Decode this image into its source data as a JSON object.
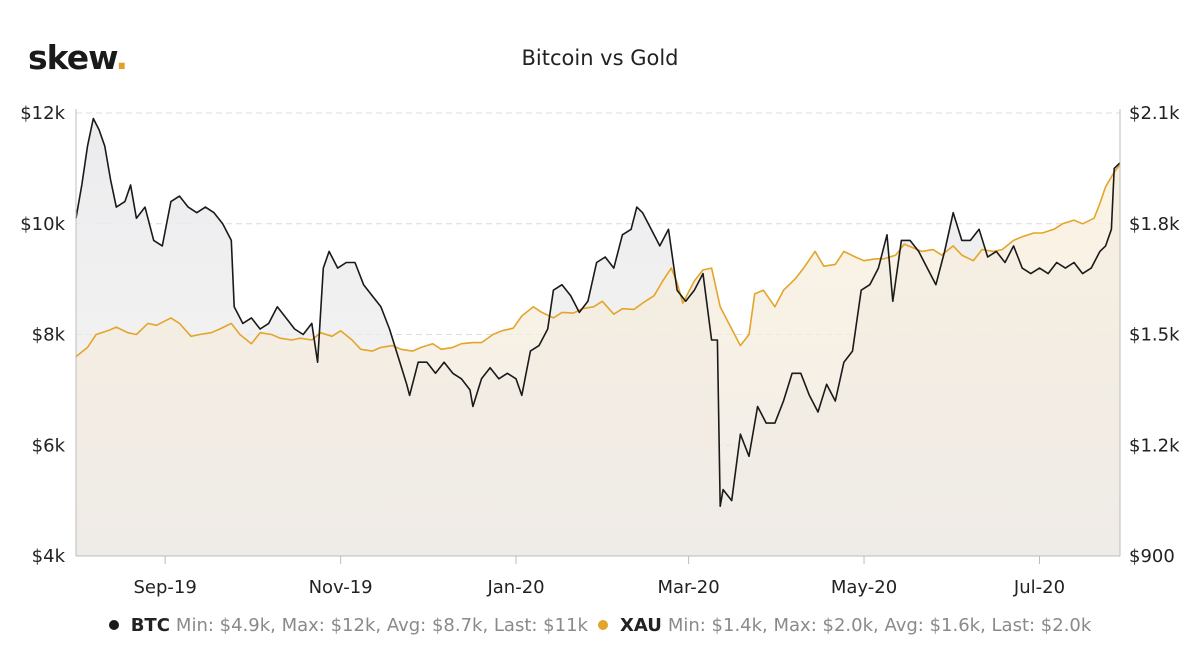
{
  "brand": {
    "name": "skew",
    "dot": "."
  },
  "colors": {
    "btc": "#1a1a1a",
    "xau": "#e3a52b",
    "grid": "#dcdcdc",
    "btcFill": "#e6e6e8",
    "xauFill": "#f6ead2"
  },
  "legend": {
    "btc": {
      "name": "BTC",
      "stats": "Min: $4.9k, Max: $12k, Avg: $8.7k, Last: $11k"
    },
    "xau": {
      "name": "XAU",
      "stats": "Min: $1.4k, Max: $2.0k, Avg: $1.6k, Last: $2.0k"
    }
  },
  "chart_data": {
    "type": "line",
    "title": "Bitcoin vs Gold",
    "x_ticks": [
      "Sep-19",
      "Nov-19",
      "Jan-20",
      "Mar-20",
      "May-20",
      "Jul-20"
    ],
    "x_tick_dates": [
      "2019-09-01",
      "2019-11-01",
      "2020-01-01",
      "2020-03-01",
      "2020-05-01",
      "2020-07-01"
    ],
    "x_range": [
      "2019-08-01",
      "2020-07-29"
    ],
    "y_left": {
      "range": [
        4000,
        12000
      ],
      "ticks": [
        4000,
        6000,
        8000,
        10000,
        12000
      ],
      "tick_labels": [
        "$4k",
        "$6k",
        "$8k",
        "$10k",
        "$12k"
      ]
    },
    "y_right": {
      "range": [
        900,
        2100
      ],
      "ticks": [
        900,
        1200,
        1500,
        1800,
        2100
      ],
      "tick_labels": [
        "$900",
        "$1.2k",
        "$1.5k",
        "$1.8k",
        "$2.1k"
      ]
    },
    "grid": true,
    "legend_position": "bottom-center",
    "series": [
      {
        "name": "BTC",
        "axis": "left",
        "points": [
          [
            "2019-08-01",
            10100
          ],
          [
            "2019-08-03",
            10700
          ],
          [
            "2019-08-05",
            11400
          ],
          [
            "2019-08-07",
            11900
          ],
          [
            "2019-08-09",
            11700
          ],
          [
            "2019-08-11",
            11400
          ],
          [
            "2019-08-13",
            10800
          ],
          [
            "2019-08-15",
            10300
          ],
          [
            "2019-08-18",
            10400
          ],
          [
            "2019-08-20",
            10700
          ],
          [
            "2019-08-22",
            10100
          ],
          [
            "2019-08-25",
            10300
          ],
          [
            "2019-08-28",
            9700
          ],
          [
            "2019-08-31",
            9600
          ],
          [
            "2019-09-03",
            10400
          ],
          [
            "2019-09-06",
            10500
          ],
          [
            "2019-09-09",
            10300
          ],
          [
            "2019-09-12",
            10200
          ],
          [
            "2019-09-15",
            10300
          ],
          [
            "2019-09-18",
            10200
          ],
          [
            "2019-09-21",
            10000
          ],
          [
            "2019-09-24",
            9700
          ],
          [
            "2019-09-25",
            8500
          ],
          [
            "2019-09-28",
            8200
          ],
          [
            "2019-10-01",
            8300
          ],
          [
            "2019-10-04",
            8100
          ],
          [
            "2019-10-07",
            8200
          ],
          [
            "2019-10-10",
            8500
          ],
          [
            "2019-10-13",
            8300
          ],
          [
            "2019-10-16",
            8100
          ],
          [
            "2019-10-19",
            8000
          ],
          [
            "2019-10-22",
            8200
          ],
          [
            "2019-10-24",
            7500
          ],
          [
            "2019-10-26",
            9200
          ],
          [
            "2019-10-28",
            9500
          ],
          [
            "2019-10-31",
            9200
          ],
          [
            "2019-11-03",
            9300
          ],
          [
            "2019-11-06",
            9300
          ],
          [
            "2019-11-09",
            8900
          ],
          [
            "2019-11-12",
            8700
          ],
          [
            "2019-11-15",
            8500
          ],
          [
            "2019-11-18",
            8100
          ],
          [
            "2019-11-21",
            7600
          ],
          [
            "2019-11-24",
            7100
          ],
          [
            "2019-11-25",
            6900
          ],
          [
            "2019-11-28",
            7500
          ],
          [
            "2019-12-01",
            7500
          ],
          [
            "2019-12-04",
            7300
          ],
          [
            "2019-12-07",
            7500
          ],
          [
            "2019-12-10",
            7300
          ],
          [
            "2019-12-13",
            7200
          ],
          [
            "2019-12-16",
            7000
          ],
          [
            "2019-12-17",
            6700
          ],
          [
            "2019-12-20",
            7200
          ],
          [
            "2019-12-23",
            7400
          ],
          [
            "2019-12-26",
            7200
          ],
          [
            "2019-12-29",
            7300
          ],
          [
            "2020-01-01",
            7200
          ],
          [
            "2020-01-03",
            6900
          ],
          [
            "2020-01-06",
            7700
          ],
          [
            "2020-01-09",
            7800
          ],
          [
            "2020-01-12",
            8100
          ],
          [
            "2020-01-14",
            8800
          ],
          [
            "2020-01-17",
            8900
          ],
          [
            "2020-01-20",
            8700
          ],
          [
            "2020-01-23",
            8400
          ],
          [
            "2020-01-26",
            8600
          ],
          [
            "2020-01-29",
            9300
          ],
          [
            "2020-02-01",
            9400
          ],
          [
            "2020-02-04",
            9200
          ],
          [
            "2020-02-07",
            9800
          ],
          [
            "2020-02-10",
            9900
          ],
          [
            "2020-02-12",
            10300
          ],
          [
            "2020-02-14",
            10200
          ],
          [
            "2020-02-17",
            9900
          ],
          [
            "2020-02-20",
            9600
          ],
          [
            "2020-02-23",
            9900
          ],
          [
            "2020-02-26",
            8800
          ],
          [
            "2020-02-29",
            8600
          ],
          [
            "2020-03-03",
            8800
          ],
          [
            "2020-03-06",
            9100
          ],
          [
            "2020-03-09",
            7900
          ],
          [
            "2020-03-11",
            7900
          ],
          [
            "2020-03-12",
            4900
          ],
          [
            "2020-03-13",
            5200
          ],
          [
            "2020-03-16",
            5000
          ],
          [
            "2020-03-19",
            6200
          ],
          [
            "2020-03-22",
            5800
          ],
          [
            "2020-03-25",
            6700
          ],
          [
            "2020-03-28",
            6400
          ],
          [
            "2020-03-31",
            6400
          ],
          [
            "2020-04-03",
            6800
          ],
          [
            "2020-04-06",
            7300
          ],
          [
            "2020-04-09",
            7300
          ],
          [
            "2020-04-12",
            6900
          ],
          [
            "2020-04-15",
            6600
          ],
          [
            "2020-04-18",
            7100
          ],
          [
            "2020-04-21",
            6800
          ],
          [
            "2020-04-24",
            7500
          ],
          [
            "2020-04-27",
            7700
          ],
          [
            "2020-04-30",
            8800
          ],
          [
            "2020-05-03",
            8900
          ],
          [
            "2020-05-06",
            9200
          ],
          [
            "2020-05-09",
            9800
          ],
          [
            "2020-05-11",
            8600
          ],
          [
            "2020-05-14",
            9700
          ],
          [
            "2020-05-17",
            9700
          ],
          [
            "2020-05-20",
            9500
          ],
          [
            "2020-05-23",
            9200
          ],
          [
            "2020-05-26",
            8900
          ],
          [
            "2020-05-29",
            9500
          ],
          [
            "2020-06-01",
            10200
          ],
          [
            "2020-06-04",
            9700
          ],
          [
            "2020-06-07",
            9700
          ],
          [
            "2020-06-10",
            9900
          ],
          [
            "2020-06-13",
            9400
          ],
          [
            "2020-06-16",
            9500
          ],
          [
            "2020-06-19",
            9300
          ],
          [
            "2020-06-22",
            9600
          ],
          [
            "2020-06-25",
            9200
          ],
          [
            "2020-06-28",
            9100
          ],
          [
            "2020-07-01",
            9200
          ],
          [
            "2020-07-04",
            9100
          ],
          [
            "2020-07-07",
            9300
          ],
          [
            "2020-07-10",
            9200
          ],
          [
            "2020-07-13",
            9300
          ],
          [
            "2020-07-16",
            9100
          ],
          [
            "2020-07-19",
            9200
          ],
          [
            "2020-07-22",
            9500
          ],
          [
            "2020-07-24",
            9600
          ],
          [
            "2020-07-26",
            9900
          ],
          [
            "2020-07-27",
            11000
          ],
          [
            "2020-07-29",
            11100
          ]
        ]
      },
      {
        "name": "XAU",
        "axis": "right",
        "points": [
          [
            "2019-08-01",
            1440
          ],
          [
            "2019-08-05",
            1465
          ],
          [
            "2019-08-08",
            1500
          ],
          [
            "2019-08-12",
            1510
          ],
          [
            "2019-08-15",
            1520
          ],
          [
            "2019-08-19",
            1505
          ],
          [
            "2019-08-22",
            1500
          ],
          [
            "2019-08-26",
            1530
          ],
          [
            "2019-08-29",
            1525
          ],
          [
            "2019-09-03",
            1545
          ],
          [
            "2019-09-06",
            1530
          ],
          [
            "2019-09-10",
            1495
          ],
          [
            "2019-09-13",
            1500
          ],
          [
            "2019-09-17",
            1505
          ],
          [
            "2019-09-20",
            1515
          ],
          [
            "2019-09-24",
            1530
          ],
          [
            "2019-09-27",
            1500
          ],
          [
            "2019-10-01",
            1475
          ],
          [
            "2019-10-04",
            1505
          ],
          [
            "2019-10-08",
            1500
          ],
          [
            "2019-10-11",
            1490
          ],
          [
            "2019-10-15",
            1485
          ],
          [
            "2019-10-18",
            1490
          ],
          [
            "2019-10-22",
            1485
          ],
          [
            "2019-10-25",
            1505
          ],
          [
            "2019-10-29",
            1495
          ],
          [
            "2019-11-01",
            1510
          ],
          [
            "2019-11-05",
            1485
          ],
          [
            "2019-11-08",
            1460
          ],
          [
            "2019-11-12",
            1455
          ],
          [
            "2019-11-15",
            1465
          ],
          [
            "2019-11-19",
            1470
          ],
          [
            "2019-11-22",
            1460
          ],
          [
            "2019-11-26",
            1455
          ],
          [
            "2019-11-29",
            1465
          ],
          [
            "2019-12-03",
            1475
          ],
          [
            "2019-12-06",
            1460
          ],
          [
            "2019-12-10",
            1465
          ],
          [
            "2019-12-13",
            1475
          ],
          [
            "2019-12-17",
            1478
          ],
          [
            "2019-12-20",
            1478
          ],
          [
            "2019-12-24",
            1500
          ],
          [
            "2019-12-27",
            1510
          ],
          [
            "2019-12-31",
            1517
          ],
          [
            "2020-01-03",
            1550
          ],
          [
            "2020-01-07",
            1575
          ],
          [
            "2020-01-10",
            1560
          ],
          [
            "2020-01-14",
            1545
          ],
          [
            "2020-01-17",
            1560
          ],
          [
            "2020-01-21",
            1558
          ],
          [
            "2020-01-24",
            1570
          ],
          [
            "2020-01-28",
            1575
          ],
          [
            "2020-01-31",
            1590
          ],
          [
            "2020-02-04",
            1555
          ],
          [
            "2020-02-07",
            1570
          ],
          [
            "2020-02-11",
            1568
          ],
          [
            "2020-02-14",
            1585
          ],
          [
            "2020-02-18",
            1605
          ],
          [
            "2020-02-21",
            1645
          ],
          [
            "2020-02-24",
            1680
          ],
          [
            "2020-02-26",
            1640
          ],
          [
            "2020-02-28",
            1585
          ],
          [
            "2020-03-03",
            1645
          ],
          [
            "2020-03-06",
            1675
          ],
          [
            "2020-03-09",
            1680
          ],
          [
            "2020-03-12",
            1575
          ],
          [
            "2020-03-16",
            1515
          ],
          [
            "2020-03-19",
            1470
          ],
          [
            "2020-03-22",
            1500
          ],
          [
            "2020-03-24",
            1610
          ],
          [
            "2020-03-27",
            1620
          ],
          [
            "2020-03-31",
            1575
          ],
          [
            "2020-04-03",
            1620
          ],
          [
            "2020-04-07",
            1650
          ],
          [
            "2020-04-10",
            1680
          ],
          [
            "2020-04-14",
            1725
          ],
          [
            "2020-04-17",
            1685
          ],
          [
            "2020-04-21",
            1690
          ],
          [
            "2020-04-24",
            1725
          ],
          [
            "2020-04-28",
            1710
          ],
          [
            "2020-05-01",
            1700
          ],
          [
            "2020-05-05",
            1705
          ],
          [
            "2020-05-08",
            1705
          ],
          [
            "2020-05-12",
            1715
          ],
          [
            "2020-05-15",
            1745
          ],
          [
            "2020-05-18",
            1735
          ],
          [
            "2020-05-21",
            1725
          ],
          [
            "2020-05-25",
            1730
          ],
          [
            "2020-05-28",
            1715
          ],
          [
            "2020-06-01",
            1740
          ],
          [
            "2020-06-04",
            1715
          ],
          [
            "2020-06-08",
            1700
          ],
          [
            "2020-06-11",
            1730
          ],
          [
            "2020-06-15",
            1725
          ],
          [
            "2020-06-18",
            1730
          ],
          [
            "2020-06-22",
            1755
          ],
          [
            "2020-06-25",
            1765
          ],
          [
            "2020-06-29",
            1775
          ],
          [
            "2020-07-02",
            1775
          ],
          [
            "2020-07-06",
            1785
          ],
          [
            "2020-07-09",
            1800
          ],
          [
            "2020-07-13",
            1810
          ],
          [
            "2020-07-16",
            1800
          ],
          [
            "2020-07-20",
            1815
          ],
          [
            "2020-07-22",
            1855
          ],
          [
            "2020-07-24",
            1900
          ],
          [
            "2020-07-27",
            1940
          ],
          [
            "2020-07-29",
            1960
          ]
        ]
      }
    ]
  }
}
